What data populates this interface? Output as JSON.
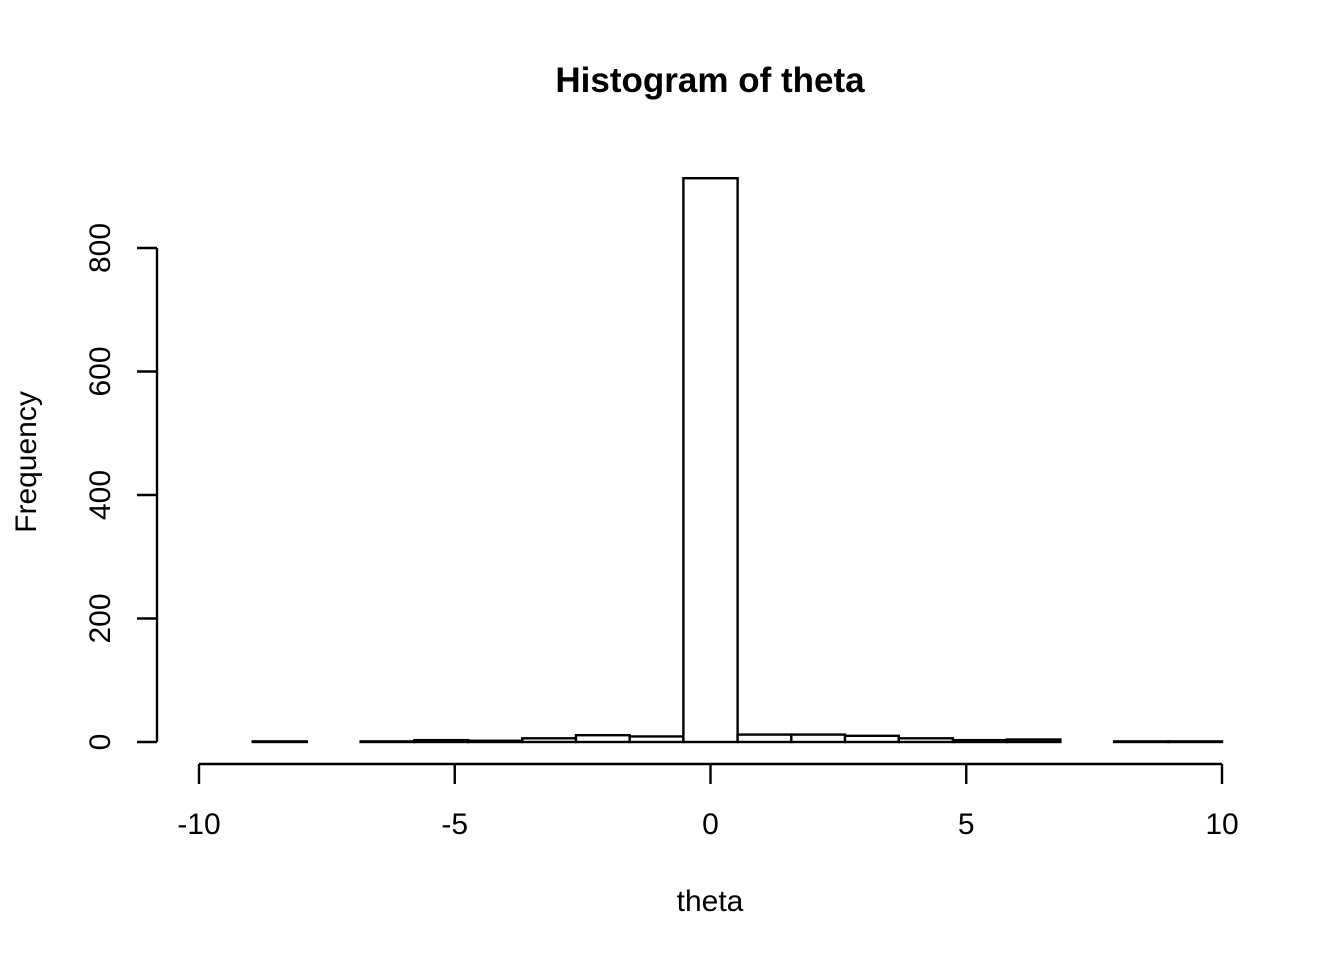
{
  "chart_data": {
    "type": "bar",
    "title": "Histogram of theta",
    "xlabel": "theta",
    "ylabel": "Frequency",
    "xlim": [
      -10,
      10
    ],
    "ylim": [
      0,
      800
    ],
    "x_ticks": [
      -10,
      -5,
      0,
      5,
      10
    ],
    "y_ticks": [
      0,
      200,
      400,
      600,
      800
    ],
    "x_tick_labels": [
      "-10",
      "-5",
      "0",
      "5",
      "10"
    ],
    "y_tick_labels": [
      "0",
      "200",
      "400",
      "600",
      "800"
    ],
    "grid": false,
    "bin_edges": [
      -10.0,
      -8.95,
      -7.89,
      -6.84,
      -5.79,
      -4.74,
      -3.68,
      -2.63,
      -1.58,
      -0.53,
      0.53,
      1.58,
      2.63,
      3.68,
      4.74,
      5.79,
      6.84,
      7.89,
      8.95,
      10.0
    ],
    "values": [
      0,
      1,
      0,
      1,
      3,
      2,
      6,
      11,
      9,
      913,
      12,
      12,
      10,
      6,
      3,
      4,
      0,
      1,
      1
    ]
  }
}
